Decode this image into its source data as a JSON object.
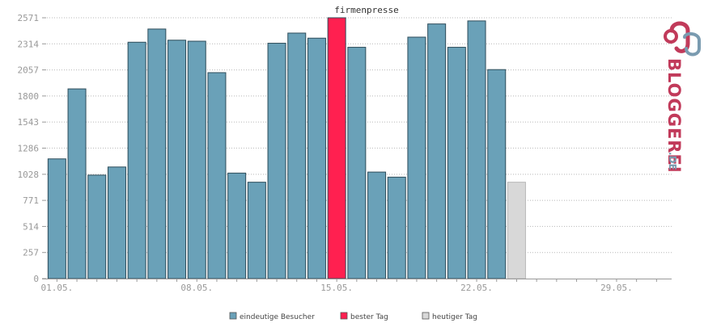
{
  "chart_data": {
    "type": "bar",
    "title": "firmenpresse",
    "xlabel": "",
    "ylabel": "",
    "ylim": [
      0,
      2571
    ],
    "yticks": [
      0,
      257,
      514,
      771,
      1028,
      1286,
      1543,
      1800,
      2057,
      2314,
      2571
    ],
    "xtick_labels": [
      {
        "day": 1,
        "label": "01.05."
      },
      {
        "day": 8,
        "label": "08.05."
      },
      {
        "day": 15,
        "label": "15.05."
      },
      {
        "day": 22,
        "label": "22.05."
      },
      {
        "day": 29,
        "label": "29.05."
      }
    ],
    "days_in_month": 31,
    "grid": true,
    "legend_position": "bottom",
    "series": [
      {
        "name": "eindeutige Besucher",
        "color": "#6aa1b8",
        "values": [
          1180,
          1870,
          1020,
          1100,
          2330,
          2460,
          2350,
          2340,
          2030,
          1040,
          950,
          2320,
          2420,
          2370,
          2571,
          2280,
          1050,
          1000,
          2380,
          2510,
          2280,
          2540,
          2060
        ]
      },
      {
        "name": "bester Tag",
        "color": "#ff2050"
      },
      {
        "name": "heutiger Tag",
        "color": "#d8d8d8",
        "values_by_day": [
          {
            "day": 24,
            "value": 950
          }
        ]
      }
    ],
    "best_day": 15
  },
  "logo": {
    "text": "BLOGGEREI",
    "suffix": ".DE",
    "color_main": "#c13a5a",
    "color_accent": "#7a9bb0"
  }
}
